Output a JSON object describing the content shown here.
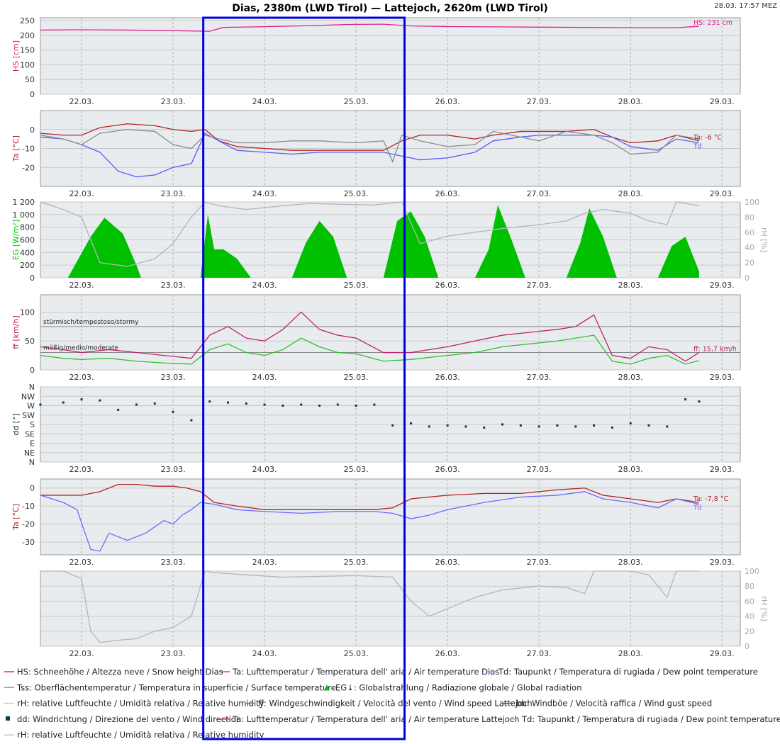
{
  "header": {
    "title": "Dias, 2380m (LWD Tirol) — Lattejoch, 2620m (LWD Tirol)",
    "timestamp": "28.03. 17:57 MEZ"
  },
  "chart_data": [
    {
      "type": "line",
      "ylabel": "HS [cm]",
      "ylim": [
        0,
        260
      ],
      "yticks": [
        "0",
        "50",
        "100",
        "150",
        "200",
        "250"
      ],
      "x_ticks": [
        "22.03.",
        "23.03.",
        "24.03.",
        "25.03.",
        "26.03.",
        "27.03.",
        "28.03.",
        "29.03."
      ],
      "series": [
        {
          "name": "HS",
          "color": "#e0208c",
          "x": [
            21.55,
            22.0,
            22.5,
            23.0,
            23.4,
            23.55,
            23.9,
            24.5,
            24.9,
            25.3,
            25.6,
            26.0,
            26.5,
            27.0,
            27.5,
            28.0,
            28.5,
            28.75
          ],
          "y": [
            218,
            219,
            218,
            216,
            214,
            227,
            229,
            233,
            237,
            238,
            232,
            230,
            229,
            228,
            227,
            226,
            226,
            231
          ]
        }
      ],
      "annotations": [
        "HS: 231 cm"
      ]
    },
    {
      "type": "line",
      "ylabel": "Ta [°C]",
      "ylim": [
        -30,
        10
      ],
      "yticks": [
        "0",
        "-10",
        "-20"
      ],
      "x_ticks": [
        "22.03.",
        "23.03.",
        "24.03.",
        "25.03.",
        "26.03.",
        "27.03.",
        "28.03.",
        "29.03."
      ],
      "series": [
        {
          "name": "Ta",
          "color": "#b22222",
          "x": [
            21.55,
            21.8,
            22.0,
            22.2,
            22.5,
            22.8,
            23.0,
            23.2,
            23.35,
            23.5,
            23.7,
            24.0,
            24.3,
            24.6,
            25.0,
            25.3,
            25.5,
            25.7,
            26.0,
            26.3,
            26.5,
            26.8,
            27.0,
            27.3,
            27.6,
            27.8,
            28.0,
            28.3,
            28.5,
            28.75
          ],
          "y": [
            -2,
            -3,
            -3,
            1,
            3,
            2,
            0,
            -1,
            0,
            -6,
            -9,
            -10,
            -11,
            -11,
            -11,
            -11,
            -6,
            -3,
            -3,
            -5,
            -3,
            -1,
            -1,
            -1,
            0,
            -4,
            -7,
            -6,
            -3,
            -6
          ]
        },
        {
          "name": "Td",
          "color": "#5a5aff",
          "x": [
            21.55,
            21.8,
            22.0,
            22.2,
            22.4,
            22.6,
            22.8,
            23.0,
            23.2,
            23.35,
            23.5,
            23.7,
            24.0,
            24.3,
            24.6,
            25.0,
            25.3,
            25.5,
            25.7,
            26.0,
            26.3,
            26.5,
            26.8,
            27.0,
            27.3,
            27.6,
            27.8,
            28.0,
            28.3,
            28.5,
            28.75
          ],
          "y": [
            -4,
            -5,
            -8,
            -12,
            -22,
            -25,
            -24,
            -20,
            -18,
            -2,
            -6,
            -11,
            -12,
            -13,
            -12,
            -12,
            -12,
            -14,
            -16,
            -15,
            -12,
            -6,
            -4,
            -3,
            -3,
            -3,
            -4,
            -9,
            -11,
            -5,
            -7
          ]
        },
        {
          "name": "Tss",
          "color": "#8c8c8c",
          "x": [
            21.55,
            21.8,
            22.0,
            22.2,
            22.5,
            22.8,
            23.0,
            23.2,
            23.35,
            23.5,
            23.7,
            24.0,
            24.3,
            24.6,
            25.0,
            25.3,
            25.4,
            25.5,
            25.7,
            26.0,
            26.3,
            26.5,
            26.8,
            27.0,
            27.3,
            27.6,
            27.8,
            28.0,
            28.3,
            28.5,
            28.75
          ],
          "y": [
            -3,
            -5,
            -8,
            -2,
            0,
            -1,
            -8,
            -10,
            -3,
            -5,
            -7,
            -7,
            -6,
            -6,
            -7,
            -6,
            -17,
            -3,
            -6,
            -9,
            -8,
            -1,
            -4,
            -6,
            -1,
            -3,
            -7,
            -13,
            -12,
            -3,
            -5
          ]
        }
      ],
      "annotations": [
        "Ta: -6 °C",
        "Td"
      ]
    },
    {
      "type": "area",
      "ylabel": "EG [W/m²]",
      "ylabel_right": "rH [%]",
      "ylim": [
        0,
        1200
      ],
      "yticks": [
        "0",
        "200",
        "400",
        "600",
        "800",
        "1 000",
        "1 200"
      ],
      "yticks_right": [
        "0",
        "20",
        "40",
        "60",
        "80",
        "100"
      ],
      "x_ticks": [
        "22.03.",
        "23.03.",
        "24.03.",
        "25.03.",
        "26.03.",
        "27.03.",
        "28.03.",
        "29.03."
      ],
      "series": [
        {
          "name": "EG",
          "color": "#00c000",
          "x": [
            21.85,
            22.1,
            22.25,
            22.45,
            22.6,
            22.65,
            23.3,
            23.38,
            23.45,
            23.55,
            23.7,
            23.85,
            24.3,
            24.45,
            24.6,
            24.75,
            24.9,
            25.3,
            25.45,
            25.6,
            25.75,
            25.9,
            26.3,
            26.45,
            26.55,
            26.7,
            26.85,
            27.3,
            27.45,
            27.55,
            27.7,
            27.85,
            28.3,
            28.45,
            28.6,
            28.75
          ],
          "y": [
            0,
            650,
            950,
            700,
            200,
            0,
            0,
            1000,
            450,
            450,
            300,
            0,
            0,
            550,
            900,
            650,
            0,
            0,
            900,
            1050,
            650,
            0,
            0,
            450,
            1150,
            600,
            0,
            0,
            550,
            1100,
            650,
            0,
            0,
            500,
            650,
            100
          ]
        },
        {
          "name": "rH",
          "color": "#b4b4c0",
          "axis": "right",
          "x": [
            21.55,
            21.8,
            22.0,
            22.2,
            22.5,
            22.8,
            23.0,
            23.2,
            23.35,
            23.5,
            23.8,
            24.2,
            24.5,
            24.8,
            25.2,
            25.5,
            25.7,
            26.0,
            26.3,
            26.6,
            27.0,
            27.3,
            27.5,
            27.7,
            28.0,
            28.2,
            28.4,
            28.5,
            28.75
          ],
          "y": [
            100,
            90,
            80,
            20,
            15,
            25,
            45,
            80,
            100,
            95,
            90,
            95,
            98,
            97,
            96,
            100,
            45,
            55,
            60,
            65,
            70,
            75,
            85,
            90,
            85,
            75,
            70,
            100,
            95
          ]
        }
      ]
    },
    {
      "type": "line",
      "ylabel": "ff [km/h]",
      "ylim": [
        0,
        130
      ],
      "yticks": [
        "0",
        "50",
        "100"
      ],
      "x_ticks": [
        "22.03.",
        "23.03.",
        "24.03.",
        "25.03.",
        "26.03.",
        "27.03.",
        "28.03.",
        "29.03."
      ],
      "reference_lines": [
        {
          "label": "stürmisch/tempestoso/stormy",
          "value": 75
        },
        {
          "label": "mäßig/medio/moderate",
          "value": 30
        }
      ],
      "series": [
        {
          "name": "bb",
          "color": "#c0206c",
          "x": [
            21.55,
            21.8,
            22.0,
            22.3,
            22.6,
            22.9,
            23.2,
            23.4,
            23.6,
            23.8,
            24.0,
            24.2,
            24.4,
            24.6,
            24.8,
            25.0,
            25.3,
            25.6,
            26.0,
            26.3,
            26.6,
            26.9,
            27.2,
            27.4,
            27.6,
            27.8,
            28.0,
            28.2,
            28.4,
            28.6,
            28.75
          ],
          "y": [
            40,
            35,
            30,
            35,
            30,
            25,
            20,
            60,
            75,
            55,
            50,
            70,
            100,
            70,
            60,
            55,
            30,
            30,
            40,
            50,
            60,
            65,
            70,
            75,
            95,
            25,
            20,
            40,
            35,
            15,
            30
          ]
        },
        {
          "name": "ff",
          "color": "#30c030",
          "x": [
            21.55,
            21.8,
            22.0,
            22.3,
            22.6,
            22.9,
            23.2,
            23.4,
            23.6,
            23.8,
            24.0,
            24.2,
            24.4,
            24.6,
            24.8,
            25.0,
            25.3,
            25.6,
            26.0,
            26.3,
            26.6,
            26.9,
            27.2,
            27.4,
            27.6,
            27.8,
            28.0,
            28.2,
            28.4,
            28.6,
            28.75
          ],
          "y": [
            25,
            20,
            18,
            20,
            15,
            12,
            10,
            35,
            45,
            30,
            25,
            35,
            55,
            40,
            30,
            28,
            15,
            18,
            25,
            30,
            40,
            45,
            50,
            55,
            60,
            15,
            10,
            20,
            25,
            10,
            16
          ]
        }
      ],
      "annotations": [
        "ff: 15,7 km/h"
      ]
    },
    {
      "type": "scatter",
      "ylabel": "dd [°]",
      "yticks": [
        "N",
        "NE",
        "E",
        "SE",
        "S",
        "SW",
        "W",
        "NW",
        "N"
      ],
      "ylim": [
        0,
        360
      ],
      "x_ticks": [
        "22.03.",
        "23.03.",
        "24.03.",
        "25.03.",
        "26.03.",
        "27.03.",
        "28.03.",
        "29.03."
      ],
      "series": [
        {
          "name": "dd",
          "color": "#0d3a4d",
          "x": [
            21.55,
            21.8,
            22.0,
            22.2,
            22.4,
            22.6,
            22.8,
            23.0,
            23.2,
            23.4,
            23.6,
            23.8,
            24.0,
            24.2,
            24.4,
            24.6,
            24.8,
            25.0,
            25.2,
            25.4,
            25.6,
            25.8,
            26.0,
            26.2,
            26.4,
            26.6,
            26.8,
            27.0,
            27.2,
            27.4,
            27.6,
            27.8,
            28.0,
            28.2,
            28.4,
            28.6,
            28.75
          ],
          "y": [
            275,
            285,
            300,
            295,
            250,
            275,
            280,
            240,
            200,
            290,
            285,
            280,
            275,
            270,
            275,
            270,
            275,
            270,
            275,
            175,
            185,
            170,
            175,
            170,
            165,
            180,
            175,
            170,
            175,
            170,
            175,
            165,
            185,
            175,
            170,
            300,
            290
          ]
        }
      ]
    },
    {
      "type": "line",
      "ylabel": "Ta [°C]",
      "ylim": [
        -37,
        5
      ],
      "yticks": [
        "0",
        "-10",
        "-20",
        "-30"
      ],
      "x_ticks": [
        "22.03.",
        "23.03.",
        "24.03.",
        "25.03.",
        "26.03.",
        "27.03.",
        "28.03.",
        "29.03."
      ],
      "series": [
        {
          "name": "Ta",
          "color": "#b22222",
          "x": [
            21.55,
            21.8,
            22.0,
            22.2,
            22.4,
            22.6,
            22.8,
            23.0,
            23.15,
            23.3,
            23.45,
            23.7,
            24.0,
            24.4,
            24.8,
            25.2,
            25.4,
            25.6,
            26.0,
            26.4,
            26.8,
            27.2,
            27.5,
            27.7,
            28.0,
            28.3,
            28.5,
            28.75
          ],
          "y": [
            -4,
            -4,
            -4,
            -2,
            2,
            2,
            1,
            1,
            0,
            -2,
            -8,
            -10,
            -12,
            -12,
            -12,
            -12,
            -11,
            -6,
            -4,
            -3,
            -3,
            -1,
            0,
            -4,
            -6,
            -8,
            -6,
            -8
          ]
        },
        {
          "name": "Td",
          "color": "#6a6aff",
          "x": [
            21.55,
            21.8,
            21.95,
            22.1,
            22.2,
            22.3,
            22.5,
            22.7,
            22.9,
            23.0,
            23.1,
            23.2,
            23.3,
            23.45,
            23.7,
            24.0,
            24.4,
            24.8,
            25.2,
            25.4,
            25.6,
            25.8,
            26.0,
            26.4,
            26.8,
            27.2,
            27.5,
            27.7,
            28.0,
            28.3,
            28.5,
            28.75
          ],
          "y": [
            -4,
            -8,
            -12,
            -34,
            -35,
            -25,
            -29,
            -25,
            -18,
            -20,
            -15,
            -12,
            -8,
            -9,
            -12,
            -13,
            -14,
            -13,
            -13,
            -14,
            -17,
            -15,
            -12,
            -8,
            -5,
            -4,
            -2,
            -6,
            -8,
            -11,
            -6,
            -9
          ]
        }
      ],
      "annotations": [
        "Ta: -7,8 °C",
        "Td"
      ]
    },
    {
      "type": "line",
      "ylabel_right": "rH [%]",
      "ylim": [
        0,
        100
      ],
      "yticks_right": [
        "0",
        "20",
        "40",
        "60",
        "80",
        "100"
      ],
      "x_ticks": [
        "22.03.",
        "23.03.",
        "24.03.",
        "25.03.",
        "26.03.",
        "27.03.",
        "28.03.",
        "29.03."
      ],
      "series": [
        {
          "name": "rH",
          "color": "#b4b4c0",
          "x": [
            21.55,
            21.8,
            22.0,
            22.1,
            22.2,
            22.4,
            22.6,
            22.8,
            23.0,
            23.2,
            23.35,
            23.45,
            23.8,
            24.2,
            24.6,
            25.0,
            25.4,
            25.6,
            25.8,
            26.0,
            26.3,
            26.6,
            27.0,
            27.3,
            27.5,
            27.6,
            27.7,
            28.0,
            28.2,
            28.4,
            28.5,
            28.75
          ],
          "y": [
            100,
            100,
            90,
            20,
            5,
            8,
            10,
            20,
            25,
            40,
            100,
            98,
            95,
            92,
            93,
            94,
            92,
            60,
            40,
            50,
            65,
            75,
            80,
            78,
            70,
            100,
            100,
            100,
            95,
            65,
            100,
            100
          ]
        }
      ]
    }
  ],
  "legend": [
    {
      "color": "#e0208c",
      "label": "HS: Schneehöhe / Altezza neve / Snow height  Dias"
    },
    {
      "color": "#e34a33",
      "label": "Ta: Lufttemperatur / Temperatura dell' aria / Air temperature  Dias"
    },
    {
      "color": "#8c8cff",
      "label": "Td: Taupunkt / Temperatura di rugiada / Dew point temperature"
    },
    {
      "color": "#9a9a9a",
      "label": "Tss: Oberflächentemperatur / Temperatura in superficie / Surface temperature"
    },
    {
      "color": "#00c000",
      "label": "EG↓: Globalstrahlung / Radiazione globale / Global radiation"
    },
    {
      "color": "#c8c8cc",
      "label": "rH: relative Luftfeuchte / Umidità relativa / Relative humidity"
    },
    {
      "color": "#30c030",
      "label": "ff: Windgeschwindigkeit / Velocità del vento / Wind speed  Lattejoch"
    },
    {
      "color": "#c0206c",
      "label": "bb: Windböe / Velocità raffica / Wind gust speed"
    },
    {
      "color": "#0d3a4d",
      "label": "dd: Windrichtung / Direzione del vento / Wind direction"
    },
    {
      "color": "#e34a33",
      "label": "Ta: Lufttemperatur / Temperatura dell' aria / Air temperature  Lattejoch"
    },
    {
      "color": "#b4b4dc",
      "label": "Td: Taupunkt / Temperatura di rugiada / Dew point temperature"
    },
    {
      "color": "#c8c8cc",
      "label": "rH: relative Luftfeuchte / Umidità relativa / Relative humidity"
    }
  ],
  "highlight": {
    "color": "#0000e0",
    "from": 23.33,
    "to": 25.53
  }
}
